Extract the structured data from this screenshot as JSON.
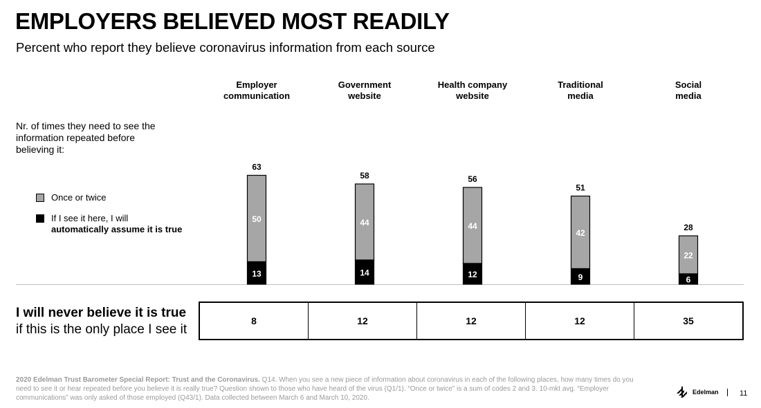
{
  "title": "EMPLOYERS BELIEVED MOST READILY",
  "subtitle": "Percent who report they believe coronavirus information from each source",
  "repeat_label": "Nr. of times they need to see the information repeated before believing it:",
  "legend": {
    "once": "Once or twice",
    "auto_line1": "If I see it here, I will",
    "auto_line2": "automatically assume it is true"
  },
  "colors": {
    "once": "#a6a6a6",
    "auto": "#000000",
    "axis": "#bfbfbf"
  },
  "chart_data": {
    "type": "bar",
    "stacked": true,
    "categories": [
      [
        "Employer",
        "communication"
      ],
      [
        "Government",
        "website"
      ],
      [
        "Health company",
        "website"
      ],
      [
        "Traditional",
        "media"
      ],
      [
        "Social",
        "media"
      ]
    ],
    "series": [
      {
        "name": "If I see it here, I will automatically assume it is true",
        "values": [
          13,
          14,
          12,
          9,
          6
        ]
      },
      {
        "name": "Once or twice",
        "values": [
          50,
          44,
          44,
          42,
          22
        ]
      }
    ],
    "totals": [
      63,
      58,
      56,
      51,
      28
    ],
    "ylim": [
      0,
      70
    ]
  },
  "never": {
    "label_line1": "I will never believe it is true",
    "label_line2": "if this is the only place I see it",
    "values": [
      "8",
      "12",
      "12",
      "12",
      "35"
    ]
  },
  "footnote": {
    "bold": "2020 Edelman Trust Barometer Special Report: Trust and the Coronavirus.",
    "text": " Q14. When you see a new piece of information about coronavirus in each of the following places, how many times do you need to see it or hear repeated before you believe it is really true? Question shown to those who have heard of the virus (Q1/1). “Once or twice” is a sum of codes 2 and 3. 10-mkt avg. “Employer communications” was only asked of those employed (Q43/1). Data collected between March 6 and March 10, 2020."
  },
  "logo_text": "Edelman",
  "page_number": "11"
}
